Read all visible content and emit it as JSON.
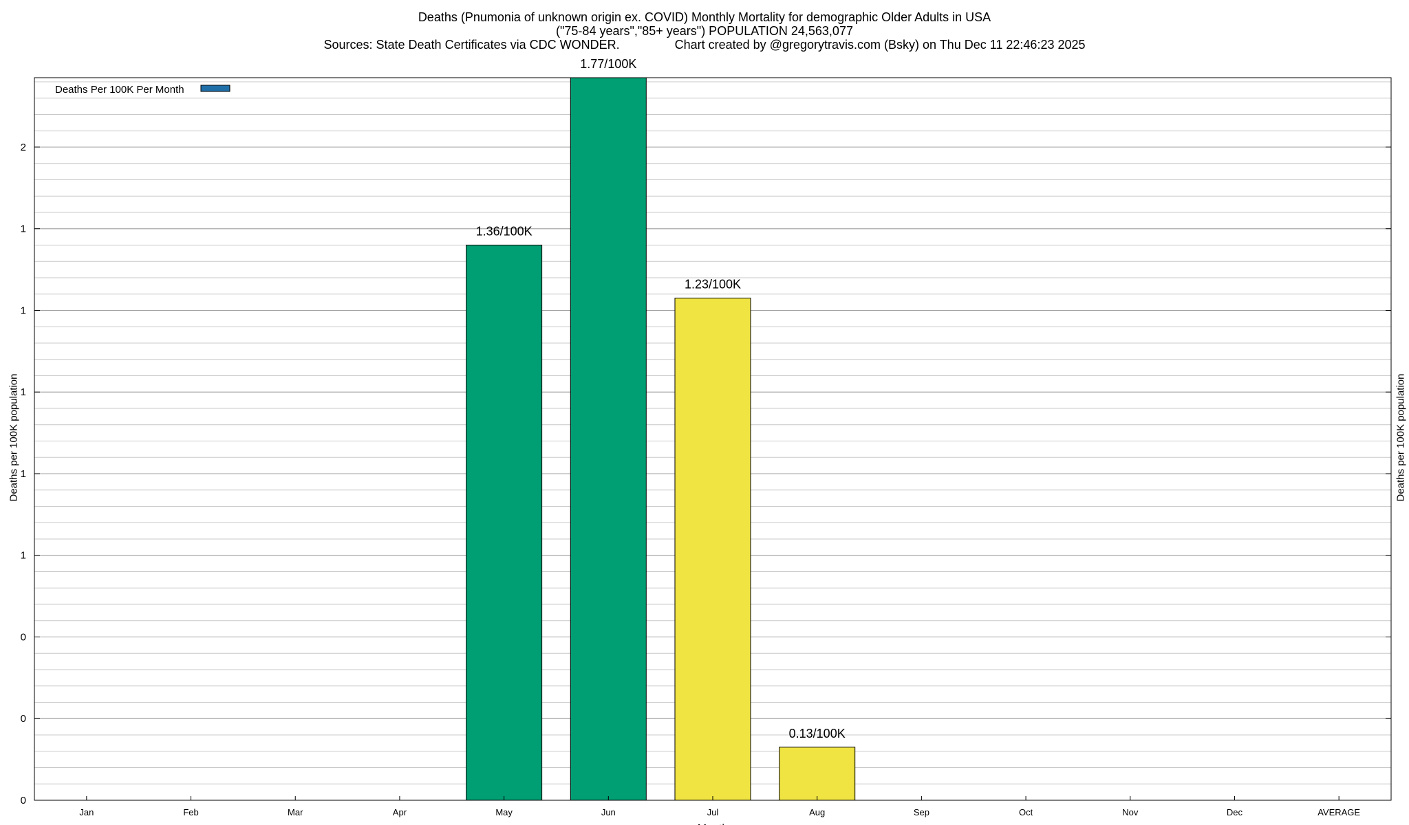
{
  "header": {
    "title_line1": "Deaths (Pnumonia of unknown origin ex. COVID) Monthly Mortality for demographic Older Adults in USA",
    "title_line2": "(\"75-84 years\",\"85+ years\") POPULATION 24,563,077",
    "title_line3": "Sources: State Death Certificates via CDC WONDER.                Chart created by @gregorytravis.com (Bsky) on Thu Dec 11 22:46:23 2025"
  },
  "chart_data": {
    "type": "bar",
    "title": "Deaths (Pnumonia of unknown origin ex. COVID) Monthly Mortality for demographic Older Adults in USA",
    "subtitle": "(\"75-84 years\",\"85+ years\") POPULATION 24,563,077",
    "xlabel": "Month",
    "ylabel": "Deaths per 100K population",
    "y2label": "Deaths per 100K population",
    "ylim": [
      0,
      1.77
    ],
    "ytick_values": [
      0,
      0.2,
      0.4,
      0.6,
      0.8,
      1.0,
      1.2,
      1.4,
      1.6
    ],
    "ytick_labels": [
      "0",
      "0",
      "0",
      "1",
      "1",
      "1",
      "1",
      "1",
      "2"
    ],
    "minor_grid_step": 0.04,
    "grid": true,
    "legend_position": "top-left",
    "categories": [
      "Jan",
      "Feb",
      "Mar",
      "Apr",
      "May",
      "Jun",
      "Jul",
      "Aug",
      "Sep",
      "Oct",
      "Nov",
      "Dec",
      "AVERAGE"
    ],
    "series": [
      {
        "name": "Deaths Per 100K Per Month",
        "color": "#1f6fa8",
        "values": [
          null,
          null,
          null,
          null,
          1.36,
          1.77,
          1.23,
          0.13,
          null,
          null,
          null,
          null,
          null
        ],
        "bar_colors": [
          null,
          null,
          null,
          null,
          "#009e73",
          "#009e73",
          "#f0e442",
          "#f0e442",
          null,
          null,
          null,
          null,
          null
        ],
        "data_labels": [
          "",
          "",
          "",
          "",
          "1.36/100K",
          "1.77/100K",
          "1.23/100K",
          "0.13/100K",
          "",
          "",
          "",
          "",
          ""
        ]
      }
    ]
  }
}
